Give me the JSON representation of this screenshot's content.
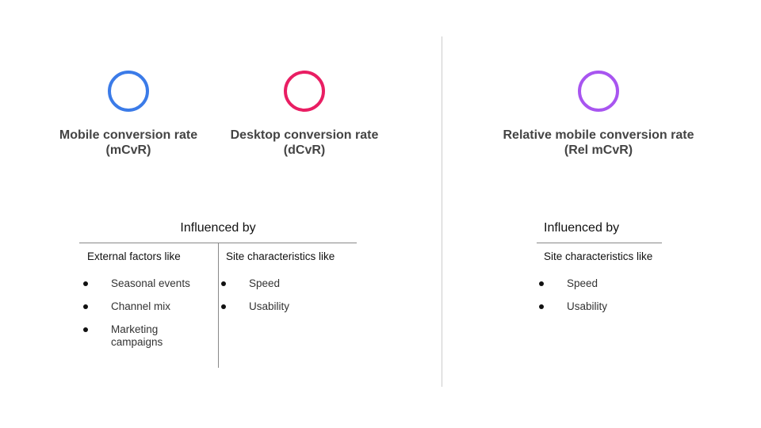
{
  "metrics": [
    {
      "title": "Mobile conversion rate",
      "abbr": "(mCvR)",
      "color": "#3b7be8"
    },
    {
      "title": "Desktop conversion rate",
      "abbr": "(dCvR)",
      "color": "#e91e63"
    },
    {
      "title": "Relative mobile conversion rate",
      "abbr": "(Rel mCvR)",
      "color": "#a855f0"
    }
  ],
  "left_panel": {
    "heading": "Influenced by",
    "columns": [
      {
        "header": "External factors like",
        "items": [
          "Seasonal events",
          "Channel mix",
          "Marketing campaigns"
        ]
      },
      {
        "header": "Site characteristics like",
        "items": [
          "Speed",
          "Usability"
        ]
      }
    ]
  },
  "right_panel": {
    "heading": "Influenced by",
    "columns": [
      {
        "header": "Site characteristics like",
        "items": [
          "Speed",
          "Usability"
        ]
      }
    ]
  }
}
